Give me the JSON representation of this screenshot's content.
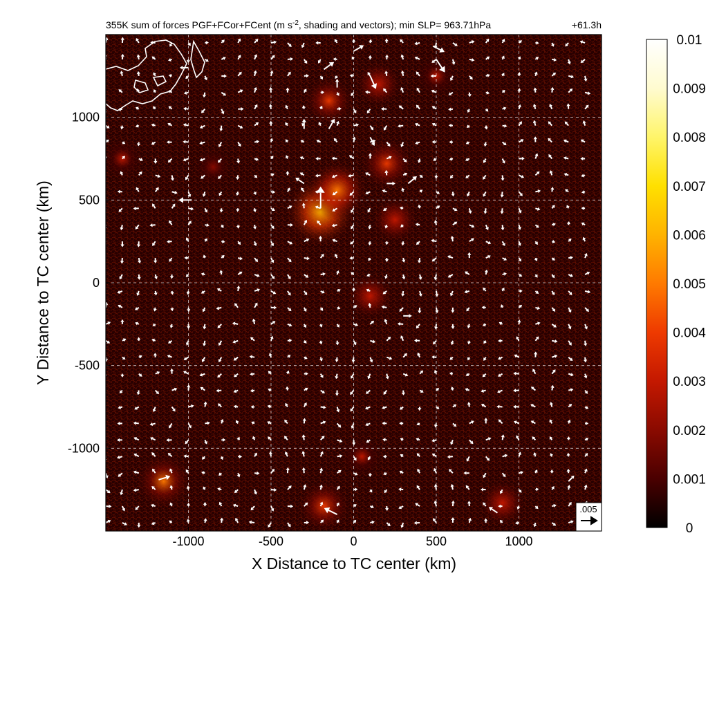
{
  "chart_data": {
    "type": "heatmap",
    "title": "355K sum of forces PGF+FCor+FCent (m s⁻², shading and vectors); min SLP= 963.71hPa",
    "title_parts": {
      "prefix": "355K sum of forces PGF+FCor+FCent (m s",
      "sup": "-2",
      "suffix": ", shading and vectors); min SLP= 963.71hPa"
    },
    "forecast_hour": "+61.3h",
    "xlabel": "X Distance to TC center (km)",
    "ylabel": "Y Distance to TC center (km)",
    "xlim": [
      -1500,
      1500
    ],
    "ylim": [
      -1500,
      1500
    ],
    "x_ticks": [
      -1000,
      -500,
      0,
      500,
      1000
    ],
    "y_ticks": [
      -1000,
      -500,
      0,
      500,
      1000
    ],
    "x_tick_labels": [
      "-1000",
      "-500",
      "0",
      "500",
      "1000"
    ],
    "y_tick_labels": [
      "-1000",
      "-500",
      "0",
      "500",
      "1000"
    ],
    "grid": true,
    "colorbar": {
      "min": 0,
      "max": 0.01,
      "ticks": [
        0,
        0.001,
        0.002,
        0.003,
        0.004,
        0.005,
        0.006,
        0.007,
        0.008,
        0.009,
        0.01
      ],
      "tick_labels": [
        "0",
        "0.001",
        "0.002",
        "0.003",
        "0.004",
        "0.005",
        "0.006",
        "0.007",
        "0.008",
        "0.009",
        "0.01"
      ],
      "colors": [
        "#000000",
        "#4a0000",
        "#8a0a00",
        "#c41800",
        "#ee3a00",
        "#ff7a00",
        "#ffb300",
        "#ffe000",
        "#fff56a",
        "#fffbd0",
        "#ffffff"
      ]
    },
    "reference_vector": {
      "label": ".005",
      "value": 0.005,
      "placement": "bottom-right"
    },
    "hotspots": [
      {
        "x": -200,
        "y": 430,
        "value": 0.0065
      },
      {
        "x": -100,
        "y": 560,
        "value": 0.005
      },
      {
        "x": 200,
        "y": 720,
        "value": 0.004
      },
      {
        "x": -150,
        "y": 1100,
        "value": 0.0035
      },
      {
        "x": 150,
        "y": 1200,
        "value": 0.003
      },
      {
        "x": -1150,
        "y": -1200,
        "value": 0.0045
      },
      {
        "x": -180,
        "y": -1350,
        "value": 0.004
      },
      {
        "x": 900,
        "y": -1330,
        "value": 0.003
      },
      {
        "x": 100,
        "y": -80,
        "value": 0.003
      },
      {
        "x": 50,
        "y": -1050,
        "value": 0.0025
      },
      {
        "x": 250,
        "y": 380,
        "value": 0.003
      },
      {
        "x": -1400,
        "y": 750,
        "value": 0.0025
      },
      {
        "x": -850,
        "y": 700,
        "value": 0.002
      },
      {
        "x": 500,
        "y": 1250,
        "value": 0.0025
      }
    ],
    "vectors": [
      {
        "x": -200,
        "y": 450,
        "u": 0,
        "v": 0.0075
      },
      {
        "x": -980,
        "y": 500,
        "u": -0.0045,
        "v": 0
      },
      {
        "x": -1180,
        "y": -1190,
        "u": 0.004,
        "v": 0.0012
      },
      {
        "x": -100,
        "y": -1400,
        "u": -0.0045,
        "v": 0.0022
      },
      {
        "x": 330,
        "y": 600,
        "u": 0.003,
        "v": 0.0025
      },
      {
        "x": 500,
        "y": 1350,
        "u": 0.003,
        "v": -0.0045
      },
      {
        "x": 100,
        "y": 1250,
        "u": 0.002,
        "v": -0.0045
      },
      {
        "x": -180,
        "y": 1290,
        "u": 0.0035,
        "v": 0.0025
      },
      {
        "x": 0,
        "y": 1400,
        "u": 0.0035,
        "v": 0.002
      },
      {
        "x": -100,
        "y": 1180,
        "u": 0,
        "v": 0.003
      },
      {
        "x": 480,
        "y": 1430,
        "u": 0.004,
        "v": -0.002
      },
      {
        "x": -300,
        "y": 600,
        "u": -0.003,
        "v": 0.002
      },
      {
        "x": 300,
        "y": -200,
        "u": 0.003,
        "v": 0
      },
      {
        "x": 870,
        "y": -1390,
        "u": -0.003,
        "v": 0.002
      },
      {
        "x": -150,
        "y": 930,
        "u": 0.002,
        "v": 0.0035
      },
      {
        "x": -300,
        "y": 930,
        "u": 0,
        "v": 0.0035
      },
      {
        "x": 100,
        "y": 880,
        "u": 0.0015,
        "v": -0.003
      },
      {
        "x": 200,
        "y": 600,
        "u": 0.003,
        "v": 0
      },
      {
        "x": -1000,
        "y": 1300,
        "u": -0.003,
        "v": 0
      },
      {
        "x": 1300,
        "y": -1200,
        "u": 0.002,
        "v": 0.002
      }
    ]
  }
}
